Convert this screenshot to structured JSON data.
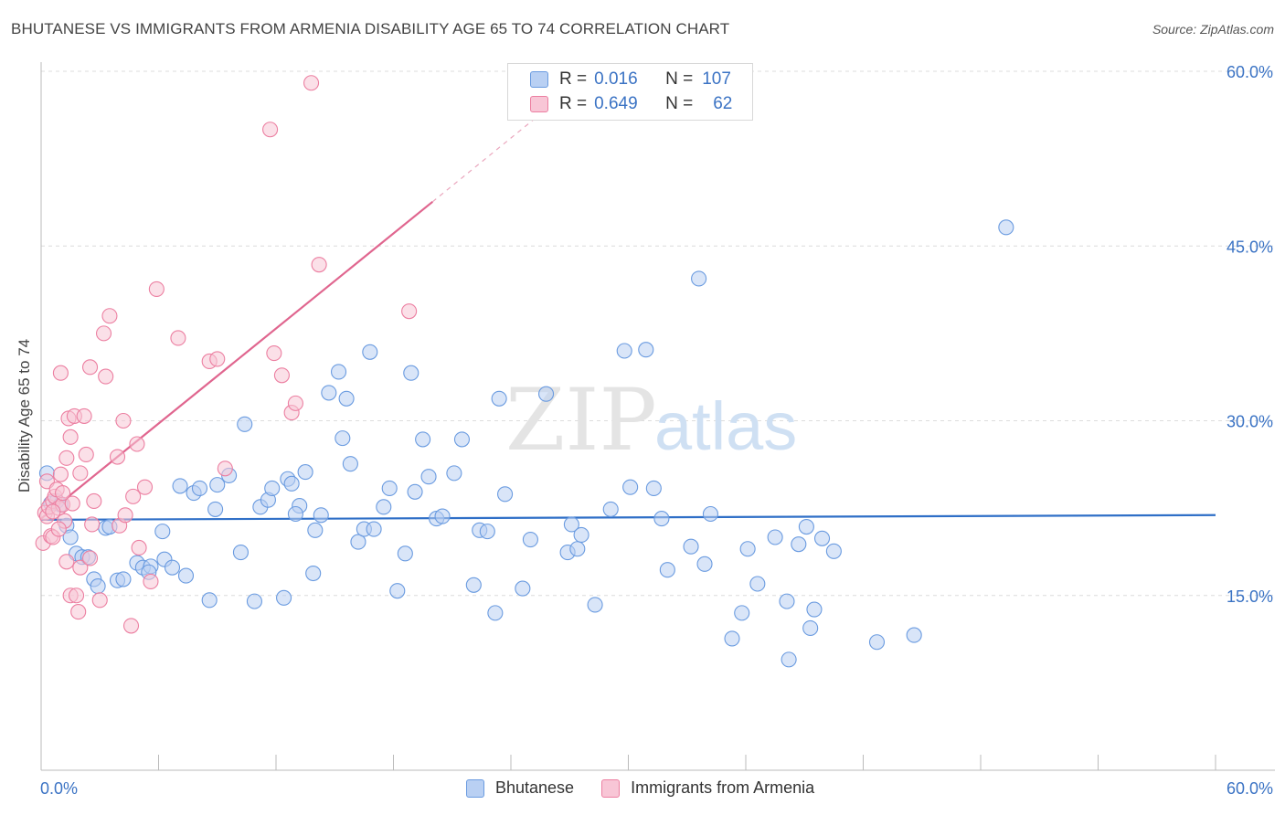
{
  "title": "BHUTANESE VS IMMIGRANTS FROM ARMENIA DISABILITY AGE 65 TO 74 CORRELATION CHART",
  "source": "Source: ZipAtlas.com",
  "watermark": {
    "zip": "ZIP",
    "atlas": "atlas"
  },
  "legend": {
    "r_label": "R =",
    "n_label": "N =",
    "rows": [
      {
        "r": "0.016",
        "n": "107",
        "color": "#6a9be0",
        "fill": "#b9d0f3"
      },
      {
        "r": "0.649",
        "n": "62",
        "color": "#ec7fa1",
        "fill": "#f8c6d6"
      }
    ]
  },
  "bottom_legend": [
    "Bhutanese",
    "Immigrants from Armenia"
  ],
  "chart_data": {
    "type": "scatter",
    "title": "BHUTANESE VS IMMIGRANTS FROM ARMENIA DISABILITY AGE 65 TO 74 CORRELATION CHART",
    "xlabel": "",
    "ylabel": "Disability Age 65 to 74",
    "xlim": [
      0,
      60
    ],
    "ylim": [
      0,
      60.0
    ],
    "x_tick_labels": [
      "0.0%",
      "60.0%"
    ],
    "y_tick_labels": [
      "15.0%",
      "30.0%",
      "45.0%",
      "60.0%"
    ],
    "y_ticks": [
      15,
      30,
      45,
      60
    ],
    "grid": true,
    "legend_position": "top-center",
    "series": [
      {
        "name": "Bhutanese",
        "color": "#6a9be0",
        "fill": "#b9d0f3",
        "trend": {
          "x": [
            0,
            60
          ],
          "y": [
            21.5,
            21.9
          ]
        },
        "points": [
          [
            0.3,
            25.5
          ],
          [
            0.5,
            22.9
          ],
          [
            0.8,
            23.1
          ],
          [
            1.0,
            22.8
          ],
          [
            1.3,
            21.0
          ],
          [
            1.5,
            20.0
          ],
          [
            1.8,
            18.6
          ],
          [
            2.1,
            18.3
          ],
          [
            2.4,
            18.3
          ],
          [
            2.7,
            16.4
          ],
          [
            2.9,
            15.8
          ],
          [
            3.3,
            20.8
          ],
          [
            3.9,
            16.3
          ],
          [
            4.2,
            16.4
          ],
          [
            4.9,
            17.8
          ],
          [
            5.2,
            17.4
          ],
          [
            5.6,
            17.5
          ],
          [
            6.2,
            20.5
          ],
          [
            6.3,
            18.1
          ],
          [
            6.7,
            17.4
          ],
          [
            7.1,
            24.4
          ],
          [
            7.4,
            16.7
          ],
          [
            7.8,
            23.8
          ],
          [
            8.1,
            24.2
          ],
          [
            8.6,
            14.6
          ],
          [
            8.9,
            22.4
          ],
          [
            9.6,
            25.3
          ],
          [
            10.2,
            18.7
          ],
          [
            10.4,
            29.7
          ],
          [
            10.9,
            14.5
          ],
          [
            11.2,
            22.6
          ],
          [
            11.6,
            23.2
          ],
          [
            11.8,
            24.2
          ],
          [
            12.4,
            14.8
          ],
          [
            12.6,
            25.0
          ],
          [
            12.8,
            24.6
          ],
          [
            13.2,
            22.7
          ],
          [
            13.5,
            25.6
          ],
          [
            13.9,
            16.9
          ],
          [
            14.0,
            20.6
          ],
          [
            14.3,
            21.9
          ],
          [
            14.7,
            32.4
          ],
          [
            15.2,
            34.2
          ],
          [
            15.4,
            28.5
          ],
          [
            15.6,
            31.9
          ],
          [
            15.8,
            26.3
          ],
          [
            16.2,
            19.6
          ],
          [
            16.5,
            20.7
          ],
          [
            16.8,
            35.9
          ],
          [
            17.0,
            20.7
          ],
          [
            17.5,
            22.6
          ],
          [
            17.8,
            24.2
          ],
          [
            18.2,
            15.4
          ],
          [
            18.6,
            18.6
          ],
          [
            18.9,
            34.1
          ],
          [
            19.1,
            23.9
          ],
          [
            19.5,
            28.4
          ],
          [
            19.8,
            25.2
          ],
          [
            20.2,
            21.6
          ],
          [
            20.5,
            21.8
          ],
          [
            21.1,
            25.5
          ],
          [
            21.5,
            28.4
          ],
          [
            22.1,
            15.9
          ],
          [
            22.4,
            20.6
          ],
          [
            22.8,
            20.5
          ],
          [
            23.2,
            13.5
          ],
          [
            23.4,
            31.9
          ],
          [
            23.7,
            23.7
          ],
          [
            24.6,
            15.6
          ],
          [
            25.0,
            19.8
          ],
          [
            25.8,
            32.3
          ],
          [
            26.9,
            18.7
          ],
          [
            27.1,
            21.1
          ],
          [
            27.4,
            19.0
          ],
          [
            27.6,
            20.2
          ],
          [
            28.3,
            14.2
          ],
          [
            29.1,
            22.4
          ],
          [
            29.8,
            36.0
          ],
          [
            30.1,
            24.3
          ],
          [
            30.9,
            36.1
          ],
          [
            31.3,
            24.2
          ],
          [
            31.7,
            21.6
          ],
          [
            32.0,
            17.2
          ],
          [
            33.2,
            19.2
          ],
          [
            33.6,
            42.2
          ],
          [
            33.9,
            17.7
          ],
          [
            34.2,
            22.0
          ],
          [
            35.3,
            11.3
          ],
          [
            35.8,
            13.5
          ],
          [
            36.1,
            19.0
          ],
          [
            36.6,
            16.0
          ],
          [
            37.5,
            20.0
          ],
          [
            38.1,
            14.5
          ],
          [
            38.2,
            9.5
          ],
          [
            38.7,
            19.4
          ],
          [
            39.1,
            20.9
          ],
          [
            39.3,
            12.2
          ],
          [
            39.5,
            13.8
          ],
          [
            39.9,
            19.9
          ],
          [
            40.5,
            18.8
          ],
          [
            42.7,
            11.0
          ],
          [
            44.6,
            11.6
          ],
          [
            49.3,
            46.6
          ],
          [
            3.5,
            20.9
          ],
          [
            5.5,
            17.0
          ],
          [
            9.0,
            24.5
          ],
          [
            13.0,
            22.0
          ]
        ]
      },
      {
        "name": "Immigrants from Armenia",
        "color": "#ec7fa1",
        "fill": "#f8c6d6",
        "trend": {
          "x": [
            0,
            20.0
          ],
          "y": [
            21.6,
            48.8
          ]
        },
        "trend_dashed": {
          "x": [
            20.0,
            26.0
          ],
          "y": [
            48.8,
            57.0
          ]
        },
        "points": [
          [
            0.1,
            19.5
          ],
          [
            0.2,
            22.1
          ],
          [
            0.3,
            24.8
          ],
          [
            0.3,
            21.8
          ],
          [
            0.4,
            22.6
          ],
          [
            0.5,
            20.1
          ],
          [
            0.6,
            23.1
          ],
          [
            0.6,
            20.0
          ],
          [
            0.7,
            23.5
          ],
          [
            0.8,
            24.1
          ],
          [
            0.9,
            22.5
          ],
          [
            1.0,
            34.1
          ],
          [
            1.0,
            25.4
          ],
          [
            1.1,
            22.8
          ],
          [
            1.2,
            21.4
          ],
          [
            1.3,
            26.8
          ],
          [
            1.3,
            17.9
          ],
          [
            1.4,
            30.2
          ],
          [
            1.5,
            28.6
          ],
          [
            1.5,
            15.0
          ],
          [
            1.6,
            22.9
          ],
          [
            1.7,
            30.4
          ],
          [
            1.8,
            15.0
          ],
          [
            1.9,
            13.6
          ],
          [
            2.0,
            25.5
          ],
          [
            2.0,
            17.4
          ],
          [
            2.2,
            30.4
          ],
          [
            2.3,
            27.1
          ],
          [
            2.5,
            34.6
          ],
          [
            2.5,
            18.2
          ],
          [
            2.6,
            21.1
          ],
          [
            2.7,
            23.1
          ],
          [
            3.2,
            37.5
          ],
          [
            3.3,
            33.8
          ],
          [
            3.5,
            39.0
          ],
          [
            3.9,
            26.9
          ],
          [
            4.0,
            21.0
          ],
          [
            4.2,
            30.0
          ],
          [
            4.3,
            21.9
          ],
          [
            4.6,
            12.4
          ],
          [
            4.7,
            23.5
          ],
          [
            4.9,
            28.0
          ],
          [
            5.3,
            24.3
          ],
          [
            5.6,
            16.2
          ],
          [
            5.9,
            41.3
          ],
          [
            7.0,
            37.1
          ],
          [
            8.6,
            35.1
          ],
          [
            9.0,
            35.3
          ],
          [
            9.4,
            25.9
          ],
          [
            11.7,
            55.0
          ],
          [
            11.9,
            35.8
          ],
          [
            12.3,
            33.9
          ],
          [
            12.8,
            30.7
          ],
          [
            13.0,
            31.5
          ],
          [
            13.8,
            59.0
          ],
          [
            14.2,
            43.4
          ],
          [
            18.8,
            39.4
          ],
          [
            0.6,
            22.2
          ],
          [
            0.9,
            20.7
          ],
          [
            1.1,
            23.8
          ],
          [
            3.0,
            14.6
          ],
          [
            5.0,
            19.1
          ]
        ]
      }
    ]
  }
}
